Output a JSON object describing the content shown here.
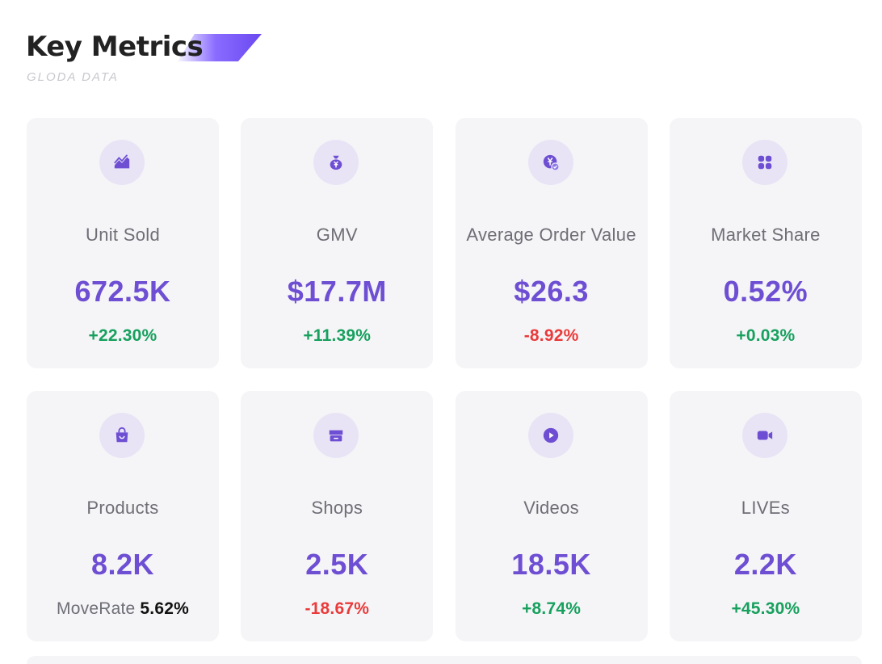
{
  "header": {
    "title": "Key Metrics",
    "subtitle": "GLODA DATA"
  },
  "colors": {
    "accent": "#6e4fd3",
    "positive": "#17a05e",
    "negative": "#ea3a3a",
    "card_bg": "#f5f5f7",
    "icon_bg": "#e8e4f6"
  },
  "cards": [
    {
      "label": "Unit Sold",
      "value": "672.5K",
      "change": "+22.30%",
      "icon": "trend-chart-icon"
    },
    {
      "label": "GMV",
      "value": "$17.7M",
      "change": "+11.39%",
      "icon": "money-bag-icon"
    },
    {
      "label": "Average Order Value",
      "value": "$26.3",
      "change": "-8.92%",
      "icon": "yen-coin-check-icon"
    },
    {
      "label": "Market Share",
      "value": "0.52%",
      "change": "+0.03%",
      "icon": "grid-four-icon"
    },
    {
      "label": "Products",
      "value": "8.2K",
      "move_rate_label": "MoveRate",
      "move_rate_value": "5.62%",
      "icon": "shopping-bag-icon"
    },
    {
      "label": "Shops",
      "value": "2.5K",
      "change": "-18.67%",
      "icon": "store-icon"
    },
    {
      "label": "Videos",
      "value": "18.5K",
      "change": "+8.74%",
      "icon": "play-circle-icon"
    },
    {
      "label": "LIVEs",
      "value": "2.2K",
      "change": "+45.30%",
      "icon": "video-camera-icon"
    }
  ]
}
